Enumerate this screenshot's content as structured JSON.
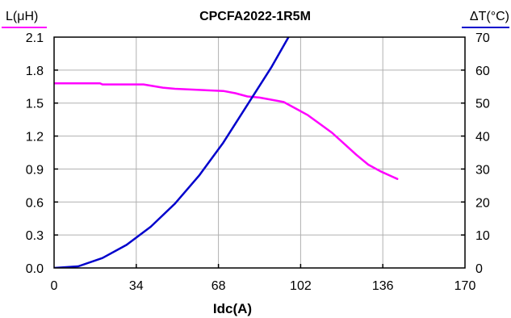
{
  "chart_data": {
    "type": "line",
    "title": "CPCFA2022-1R5M",
    "xlabel": "Idc(A)",
    "ylabel_left": "L(μH)",
    "ylabel_right": "ΔT(°C)",
    "xlim": [
      0,
      170
    ],
    "ylim_left": [
      0,
      2.1
    ],
    "ylim_right": [
      0,
      70
    ],
    "x_ticks": [
      "0",
      "34",
      "68",
      "102",
      "136",
      "170"
    ],
    "y_left_ticks": [
      "0.0",
      "0.3",
      "0.6",
      "0.9",
      "1.2",
      "1.5",
      "1.8",
      "2.1"
    ],
    "y_right_ticks": [
      "0",
      "10",
      "20",
      "30",
      "40",
      "50",
      "60",
      "70"
    ],
    "grid": true,
    "colors": {
      "inductance": "#ff00ff",
      "temperature": "#0000cc",
      "grid": "#b0b0b0",
      "frame": "#000000"
    },
    "series": [
      {
        "axis": "left",
        "x": [
          0,
          10,
          19,
          20,
          25,
          30,
          37,
          45,
          50,
          60,
          70,
          75,
          80,
          85,
          90,
          95,
          100,
          105,
          110,
          115,
          120,
          125,
          130,
          135,
          140,
          142
        ],
        "values": [
          1.68,
          1.68,
          1.68,
          1.67,
          1.67,
          1.67,
          1.67,
          1.64,
          1.63,
          1.62,
          1.61,
          1.59,
          1.56,
          1.55,
          1.53,
          1.51,
          1.45,
          1.39,
          1.31,
          1.23,
          1.13,
          1.03,
          0.94,
          0.88,
          0.83,
          0.81
        ]
      },
      {
        "axis": "right",
        "x": [
          0,
          10,
          20,
          30,
          40,
          50,
          60,
          70,
          80,
          90,
          97
        ],
        "values": [
          0,
          0.5,
          3,
          7,
          12.5,
          19.5,
          28,
          38,
          49.5,
          61,
          70
        ]
      }
    ]
  }
}
